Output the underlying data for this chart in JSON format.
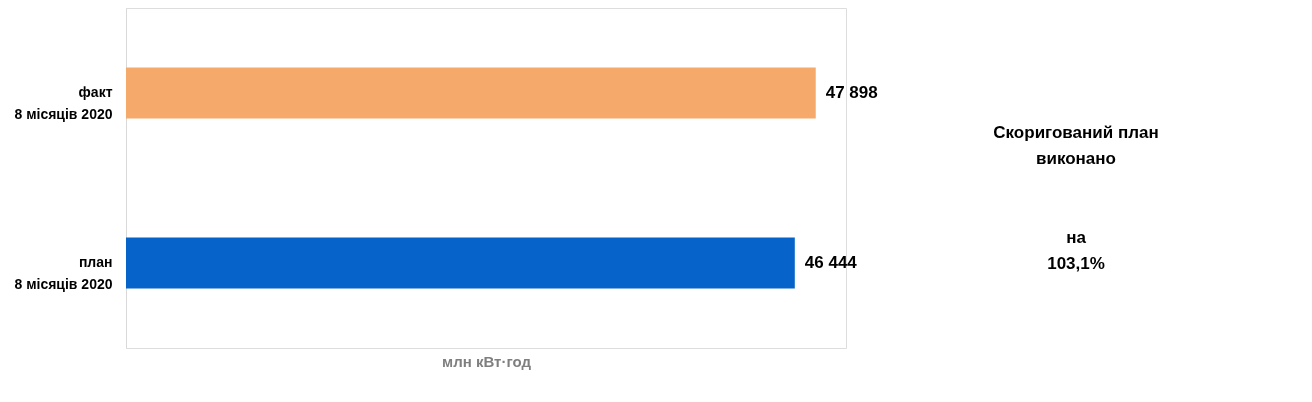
{
  "chart_data": {
    "type": "bar",
    "orientation": "horizontal",
    "categories": [
      "факт\n8 місяців 2020",
      "план\n8 місяців  2020"
    ],
    "values": [
      47898,
      46444
    ],
    "colors": [
      "#f5a96a",
      "#0563c9"
    ],
    "value_labels": [
      "47 898",
      "46 444"
    ],
    "xlabel": "млн кВт·год",
    "xlim": [
      0,
      50000
    ],
    "tick_labels": "y",
    "annotations": [
      "Скоригований план\nвиконано",
      "на\n103,1%"
    ]
  }
}
